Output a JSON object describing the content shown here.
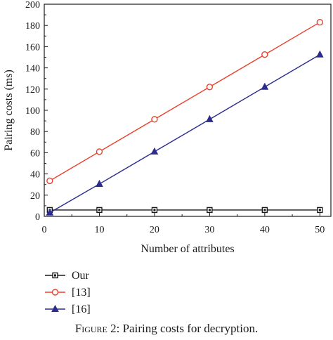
{
  "chart_data": {
    "type": "line",
    "xlabel": "Number of attributes",
    "ylabel": "Pairing costs (ms)",
    "x": [
      1,
      10,
      20,
      30,
      40,
      50
    ],
    "xticks": [
      0,
      10,
      20,
      30,
      40,
      50
    ],
    "yticks": [
      0,
      20,
      40,
      60,
      80,
      100,
      120,
      140,
      160,
      180,
      200
    ],
    "xlim": [
      0,
      52
    ],
    "ylim": [
      0,
      200
    ],
    "grid": false,
    "legend_position": "bottom-left, below plot",
    "series": [
      {
        "name": "Our",
        "color": "#1a1a1a",
        "marker": "square",
        "values": [
          6,
          6,
          6,
          6,
          6,
          6
        ]
      },
      {
        "name": "[13]",
        "color": "#e8412c",
        "marker": "circle",
        "values": [
          33.5,
          61,
          91.5,
          122,
          152.5,
          183
        ]
      },
      {
        "name": "[16]",
        "color": "#2b2c8c",
        "marker": "triangle",
        "values": [
          3.5,
          30.5,
          61,
          91.5,
          122,
          152.5
        ]
      }
    ]
  },
  "caption": {
    "prefix": "Figure 2:",
    "text": " Pairing costs for decryption."
  }
}
